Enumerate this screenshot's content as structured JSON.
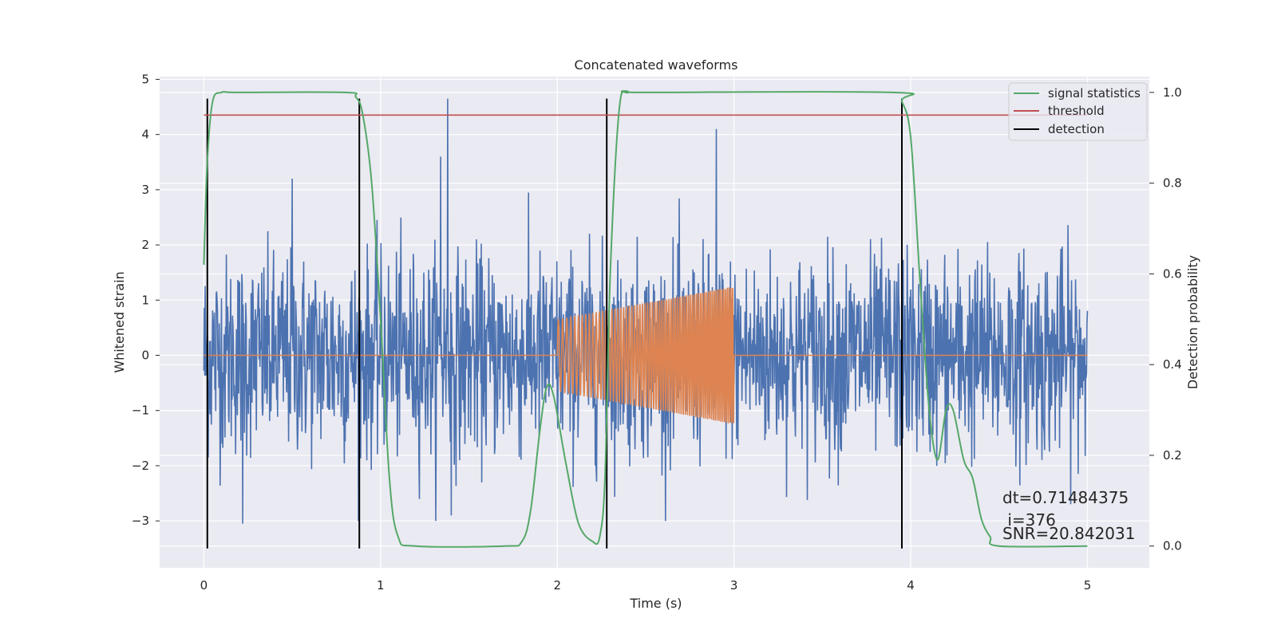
{
  "chart_data": {
    "type": "line",
    "title": "Concatenated waveforms",
    "xlabel": "Time (s)",
    "ylabel": "Whitened strain",
    "ylabel_right": "Detection probability",
    "xlim": [
      -0.25,
      5.35
    ],
    "ylim": [
      -3.85,
      5.05
    ],
    "ylim_right": [
      -0.048,
      1.035
    ],
    "x_ticks": [
      0,
      1,
      2,
      3,
      4,
      5
    ],
    "y_ticks": [
      -3,
      -2,
      -1,
      0,
      1,
      2,
      3,
      4,
      5
    ],
    "y_ticks_right": [
      0.0,
      0.2,
      0.4,
      0.6,
      0.8,
      1.0
    ],
    "grid": true,
    "legend_position": "top-right",
    "colors": {
      "background": "#eaeaf2",
      "noise": "#4c72b0",
      "signal": "#dd8452",
      "statistics": "#55a868",
      "threshold": "#c44e52",
      "detection": "#000000"
    },
    "series": [
      {
        "name": "",
        "axis": "left",
        "description_values": "whitened noisy strain, approx range -3.1 to 4.65, sampled 0-5 s",
        "x_range": [
          0,
          5
        ],
        "amplitude_typical": 1.6,
        "notable_peaks": [
          [
            1.38,
            4.65
          ],
          [
            2.9,
            4.1
          ],
          [
            1.34,
            3.6
          ],
          [
            0.5,
            3.2
          ],
          [
            1.4,
            -2.9
          ],
          [
            0.22,
            -3.05
          ]
        ]
      },
      {
        "name": "",
        "axis": "left",
        "x_range": [
          0,
          5
        ],
        "chirp_start": 2.0,
        "chirp_end": 3.0,
        "chirp_amplitude_start": 0.65,
        "chirp_amplitude_end": 1.25
      },
      {
        "name": "signal statistics",
        "axis": "right",
        "x": [
          0.0,
          0.02,
          0.05,
          0.1,
          0.2,
          0.8,
          0.86,
          0.9,
          0.95,
          1.0,
          1.05,
          1.1,
          1.2,
          1.7,
          1.8,
          1.85,
          1.9,
          1.94,
          1.98,
          2.05,
          2.12,
          2.2,
          2.24,
          2.27,
          2.3,
          2.35,
          2.4,
          2.5,
          3.9,
          3.95,
          4.0,
          4.05,
          4.1,
          4.15,
          4.2,
          4.24,
          4.3,
          4.35,
          4.4,
          4.45,
          4.5,
          5.0
        ],
        "y": [
          0.62,
          0.85,
          0.98,
          1.0,
          1.0,
          1.0,
          0.99,
          0.95,
          0.8,
          0.5,
          0.15,
          0.02,
          0.0,
          0.0,
          0.01,
          0.08,
          0.25,
          0.35,
          0.33,
          0.18,
          0.05,
          0.01,
          0.02,
          0.15,
          0.6,
          0.96,
          1.0,
          1.0,
          1.0,
          0.98,
          0.9,
          0.6,
          0.32,
          0.19,
          0.3,
          0.3,
          0.19,
          0.15,
          0.06,
          0.02,
          0.0,
          0.0
        ]
      },
      {
        "name": "threshold",
        "axis": "right",
        "x": [
          0,
          5
        ],
        "y": [
          0.95,
          0.95
        ]
      },
      {
        "name": "detection",
        "axis": "left",
        "x": [
          0.02,
          0.88,
          2.28,
          3.95
        ],
        "y_range": [
          -3.5,
          4.65
        ]
      }
    ],
    "annotations": [
      "dt=0.71484375",
      " i=376",
      "SNR=20.842031"
    ]
  }
}
